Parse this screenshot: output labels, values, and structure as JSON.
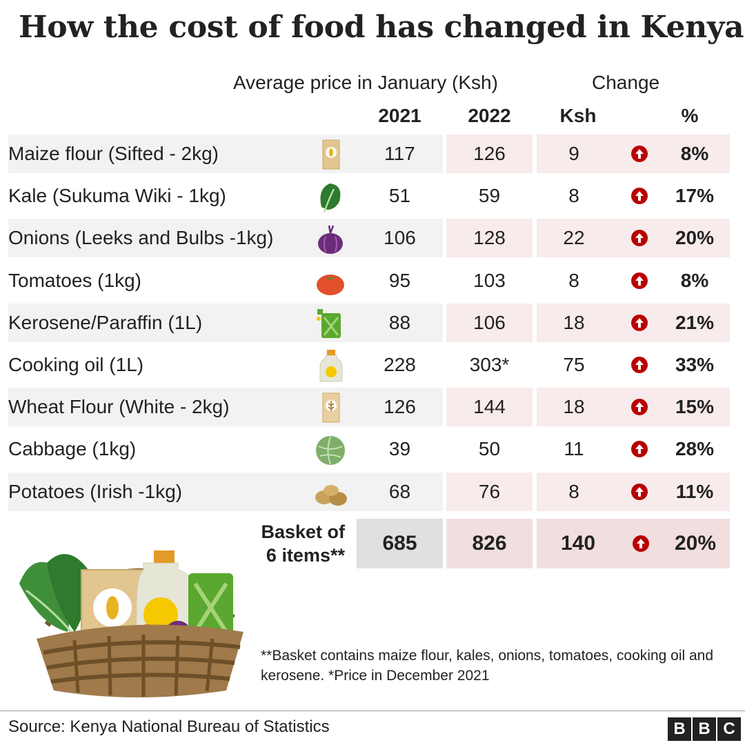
{
  "title": "How the cost of food has changed in Kenya",
  "header": {
    "avg_price": "Average price in January (Ksh)",
    "change": "Change",
    "y2021": "2021",
    "y2022": "2022",
    "ksh": "Ksh",
    "pct": "%"
  },
  "chart_data": {
    "type": "table",
    "title": "How the cost of food has changed in Kenya",
    "columns": [
      "2021",
      "2022",
      "Ksh",
      "%"
    ],
    "rows": [
      {
        "item": "Maize flour (Sifted - 2kg)",
        "icon": "maize-flour-bag-icon",
        "y2021": "117",
        "y2022": "126",
        "ksh": "9",
        "pct": "8%"
      },
      {
        "item": "Kale (Sukuma Wiki - 1kg)",
        "icon": "kale-icon",
        "y2021": "51",
        "y2022": "59",
        "ksh": "8",
        "pct": "17%"
      },
      {
        "item": "Onions (Leeks and Bulbs -1kg)",
        "icon": "onion-icon",
        "y2021": "106",
        "y2022": "128",
        "ksh": "22",
        "pct": "20%"
      },
      {
        "item": "Tomatoes (1kg)",
        "icon": "tomato-icon",
        "y2021": "95",
        "y2022": "103",
        "ksh": "8",
        "pct": "8%"
      },
      {
        "item": "Kerosene/Paraffin  (1L)",
        "icon": "jerrycan-icon",
        "y2021": "88",
        "y2022": "106",
        "ksh": "18",
        "pct": "21%"
      },
      {
        "item": "Cooking oil (1L)",
        "icon": "oil-bottle-icon",
        "y2021": "228",
        "y2022": "303*",
        "ksh": "75",
        "pct": "33%"
      },
      {
        "item": "Wheat Flour (White - 2kg)",
        "icon": "wheat-flour-bag-icon",
        "y2021": "126",
        "y2022": "144",
        "ksh": "18",
        "pct": "15%"
      },
      {
        "item": "Cabbage (1kg)",
        "icon": "cabbage-icon",
        "y2021": "39",
        "y2022": "50",
        "ksh": "11",
        "pct": "28%"
      },
      {
        "item": "Potatoes (Irish -1kg)",
        "icon": "potatoes-icon",
        "y2021": "68",
        "y2022": "76",
        "ksh": "8",
        "pct": "11%"
      }
    ],
    "basket": {
      "label_line1": "Basket of",
      "label_line2": "6 items**",
      "y2021": "685",
      "y2022": "826",
      "ksh": "140",
      "pct": "20%"
    }
  },
  "colors": {
    "arrow": "#b80000",
    "shade_grey": "#f2f2f2",
    "shade_pink": "#f8ebeb",
    "basket_grey": "#e0e0e0",
    "basket_pink": "#f1dede"
  },
  "footnote": "**Basket contains maize flour, kales, onions, tomatoes, cooking oil and kerosene. *Price in December 2021",
  "source": "Source: Kenya National Bureau of Statistics",
  "logo": [
    "B",
    "B",
    "C"
  ]
}
